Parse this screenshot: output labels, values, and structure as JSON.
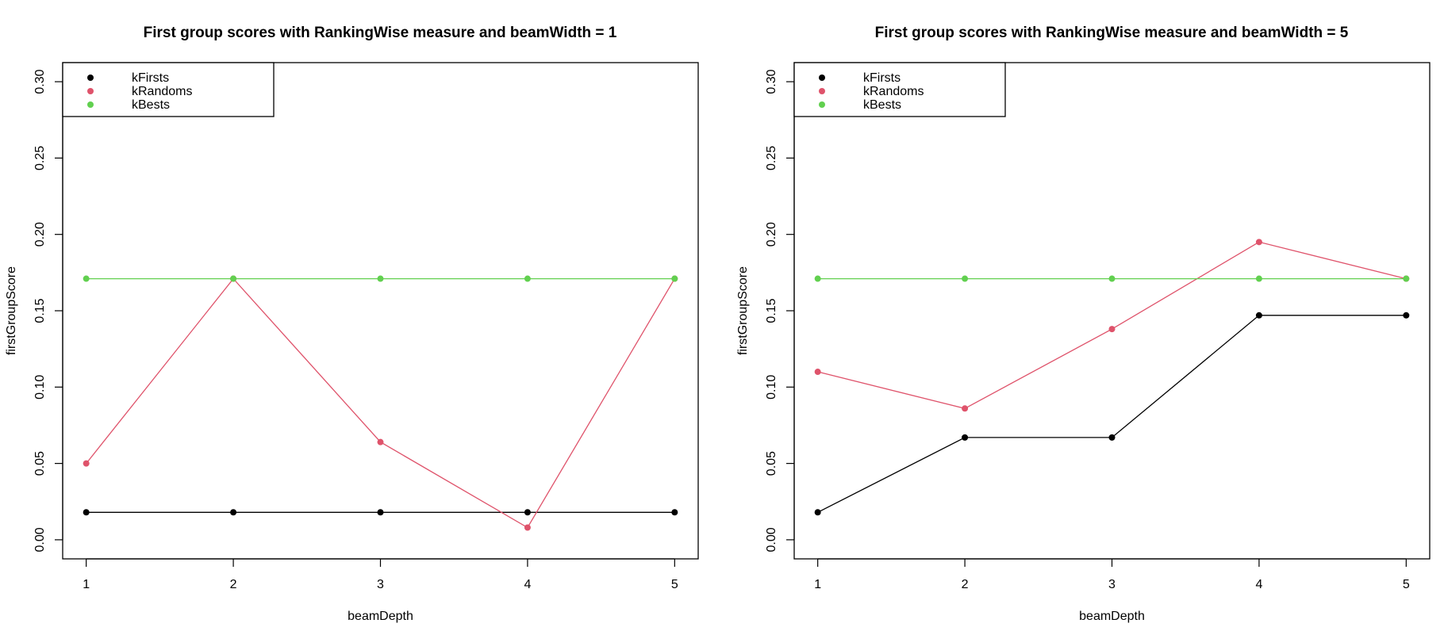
{
  "chart_data": [
    {
      "type": "line",
      "title": "First group scores with RankingWise measure and beamWidth = 1",
      "xlabel": "beamDepth",
      "ylabel": "firstGroupScore",
      "x": [
        1,
        2,
        3,
        4,
        5
      ],
      "xticks": [
        "1",
        "2",
        "3",
        "4",
        "5"
      ],
      "yticks": [
        "0.00",
        "0.05",
        "0.10",
        "0.15",
        "0.20",
        "0.25",
        "0.30"
      ],
      "xlim": [
        0.84,
        5.16
      ],
      "ylim": [
        -0.0125,
        0.3125
      ],
      "legend_position": "top-left",
      "grid": false,
      "series": [
        {
          "name": "kFirsts",
          "color": "#000000",
          "values": [
            0.018,
            0.018,
            0.018,
            0.018,
            0.018
          ]
        },
        {
          "name": "kRandoms",
          "color": "#DF536B",
          "values": [
            0.05,
            0.171,
            0.064,
            0.008,
            0.171
          ]
        },
        {
          "name": "kBests",
          "color": "#61D04F",
          "values": [
            0.171,
            0.171,
            0.171,
            0.171,
            0.171
          ]
        }
      ]
    },
    {
      "type": "line",
      "title": "First group scores with RankingWise measure and beamWidth = 5",
      "xlabel": "beamDepth",
      "ylabel": "firstGroupScore",
      "x": [
        1,
        2,
        3,
        4,
        5
      ],
      "xticks": [
        "1",
        "2",
        "3",
        "4",
        "5"
      ],
      "yticks": [
        "0.00",
        "0.05",
        "0.10",
        "0.15",
        "0.20",
        "0.25",
        "0.30"
      ],
      "xlim": [
        0.84,
        5.16
      ],
      "ylim": [
        -0.0125,
        0.3125
      ],
      "legend_position": "top-left",
      "grid": false,
      "series": [
        {
          "name": "kFirsts",
          "color": "#000000",
          "values": [
            0.018,
            0.067,
            0.067,
            0.147,
            0.147
          ]
        },
        {
          "name": "kRandoms",
          "color": "#DF536B",
          "values": [
            0.11,
            0.086,
            0.138,
            0.195,
            0.171
          ]
        },
        {
          "name": "kBests",
          "color": "#61D04F",
          "values": [
            0.171,
            0.171,
            0.171,
            0.171,
            0.171
          ]
        }
      ]
    }
  ]
}
